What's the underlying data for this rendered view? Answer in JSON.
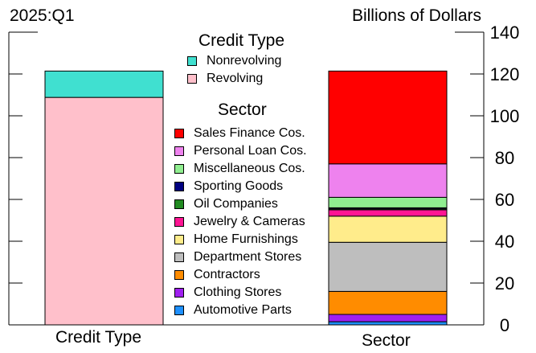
{
  "header": {
    "period": "2025:Q1",
    "units": "Billions of Dollars"
  },
  "legend": {
    "credit_title": "Credit Type",
    "credit_items": [
      {
        "label": "Nonrevolving",
        "color": "#40e0d0"
      },
      {
        "label": "Revolving",
        "color": "#ffc0cb"
      }
    ],
    "sector_title": "Sector",
    "sector_items": [
      {
        "label": "Sales Finance Cos.",
        "color": "#ff0000"
      },
      {
        "label": "Personal Loan Cos.",
        "color": "#ee82ee"
      },
      {
        "label": "Miscellaneous Cos.",
        "color": "#90ee90"
      },
      {
        "label": "Sporting Goods",
        "color": "#000080"
      },
      {
        "label": "Oil Companies",
        "color": "#228b22"
      },
      {
        "label": "Jewelry & Cameras",
        "color": "#ff1493"
      },
      {
        "label": "Home Furnishings",
        "color": "#ffec8b"
      },
      {
        "label": "Department Stores",
        "color": "#bebebe"
      },
      {
        "label": "Contractors",
        "color": "#ff8c00"
      },
      {
        "label": "Clothing Stores",
        "color": "#a020f0"
      },
      {
        "label": "Automotive Parts",
        "color": "#1e90ff"
      }
    ]
  },
  "chart_data": {
    "type": "bar",
    "stacked": true,
    "categories": [
      "Credit Type",
      "Sector"
    ],
    "ylim": [
      0,
      140
    ],
    "yticks": [
      0,
      20,
      40,
      60,
      80,
      100,
      120,
      140
    ],
    "y_axis_side": "right",
    "series": [
      {
        "group": "Credit Type",
        "name": "Revolving",
        "value": 108.8,
        "color": "#ffc0cb"
      },
      {
        "group": "Credit Type",
        "name": "Nonrevolving",
        "value": 12.6,
        "color": "#40e0d0"
      },
      {
        "group": "Sector",
        "name": "Automotive Parts",
        "value": 1.5,
        "color": "#1e90ff"
      },
      {
        "group": "Sector",
        "name": "Clothing Stores",
        "value": 3.5,
        "color": "#a020f0"
      },
      {
        "group": "Sector",
        "name": "Contractors",
        "value": 11.0,
        "color": "#ff8c00"
      },
      {
        "group": "Sector",
        "name": "Department Stores",
        "value": 23.5,
        "color": "#bebebe"
      },
      {
        "group": "Sector",
        "name": "Home Furnishings",
        "value": 12.5,
        "color": "#ffec8b"
      },
      {
        "group": "Sector",
        "name": "Jewelry & Cameras",
        "value": 3.0,
        "color": "#ff1493"
      },
      {
        "group": "Sector",
        "name": "Oil Companies",
        "value": 0.5,
        "color": "#228b22"
      },
      {
        "group": "Sector",
        "name": "Sporting Goods",
        "value": 0.5,
        "color": "#000080"
      },
      {
        "group": "Sector",
        "name": "Miscellaneous Cos.",
        "value": 5.0,
        "color": "#90ee90"
      },
      {
        "group": "Sector",
        "name": "Personal Loan Cos.",
        "value": 16.0,
        "color": "#ee82ee"
      },
      {
        "group": "Sector",
        "name": "Sales Finance Cos.",
        "value": 44.4,
        "color": "#ff0000"
      }
    ]
  }
}
